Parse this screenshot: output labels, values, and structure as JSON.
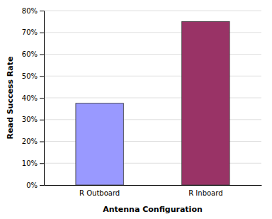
{
  "chart_data": {
    "type": "bar",
    "categories": [
      "R Outboard",
      "R Inboard"
    ],
    "values": [
      37.5,
      75.0
    ],
    "colors": [
      "#9999ff",
      "#993366"
    ],
    "xlabel": "Antenna Configuration",
    "ylabel": "Read Success Rate",
    "ylim": [
      0,
      80
    ],
    "yticks": [
      {
        "value": 0,
        "label": "0%"
      },
      {
        "value": 10,
        "label": "10%"
      },
      {
        "value": 20,
        "label": "20%"
      },
      {
        "value": 30,
        "label": "30%"
      },
      {
        "value": 40,
        "label": "40%"
      },
      {
        "value": 50,
        "label": "50%"
      },
      {
        "value": 60,
        "label": "60%"
      },
      {
        "value": 70,
        "label": "70%"
      },
      {
        "value": 80,
        "label": "80%"
      }
    ],
    "grid": true
  }
}
